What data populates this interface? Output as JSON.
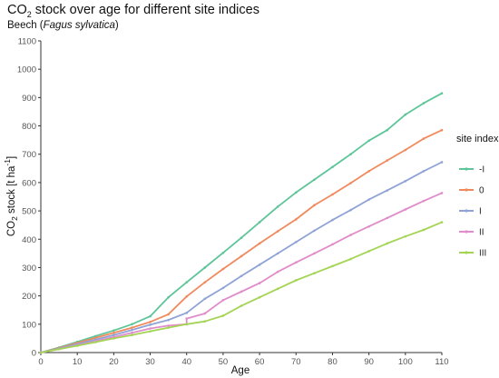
{
  "chart_data": {
    "type": "line",
    "title_prefix": "CO",
    "title_sub": "2",
    "title_suffix": " stock over age for different site indices",
    "subtitle_prefix": "Beech (",
    "subtitle_italic": "Fagus sylvatica",
    "subtitle_suffix": ")",
    "xlabel": "Age",
    "ylabel_prefix": "CO",
    "ylabel_sub": "2",
    "ylabel_mid": " stock [t ha",
    "ylabel_sup": "-1",
    "ylabel_suffix": "]",
    "xlim": [
      0,
      110
    ],
    "ylim": [
      0,
      1100
    ],
    "xticks": [
      0,
      10,
      20,
      30,
      40,
      50,
      60,
      70,
      80,
      90,
      100,
      110
    ],
    "yticks": [
      0,
      100,
      200,
      300,
      400,
      500,
      600,
      700,
      800,
      900,
      1000,
      1100
    ],
    "legend_title": "site index",
    "legend_position": "right",
    "series": [
      {
        "name": "-I",
        "color": "#5ec59a",
        "x": [
          0,
          5,
          10,
          15,
          20,
          25,
          30,
          35,
          40,
          45,
          50,
          55,
          60,
          65,
          70,
          75,
          80,
          85,
          90,
          95,
          100,
          105,
          110
        ],
        "y": [
          0,
          18,
          38,
          58,
          78,
          100,
          128,
          195,
          248,
          300,
          352,
          405,
          460,
          515,
          565,
          610,
          655,
          700,
          748,
          785,
          840,
          880,
          915
        ]
      },
      {
        "name": "0",
        "color": "#f08a5d",
        "x": [
          0,
          5,
          10,
          15,
          20,
          25,
          30,
          35,
          40,
          45,
          50,
          55,
          60,
          65,
          70,
          75,
          80,
          85,
          90,
          95,
          100,
          105,
          110
        ],
        "y": [
          0,
          16,
          34,
          52,
          70,
          88,
          108,
          135,
          198,
          248,
          295,
          340,
          385,
          428,
          470,
          520,
          558,
          598,
          640,
          678,
          715,
          755,
          785
        ]
      },
      {
        "name": "I",
        "color": "#8fa3d6",
        "x": [
          0,
          5,
          10,
          15,
          20,
          25,
          30,
          35,
          40,
          45,
          50,
          55,
          60,
          65,
          70,
          75,
          80,
          85,
          90,
          95,
          100,
          105,
          110
        ],
        "y": [
          0,
          14,
          30,
          46,
          62,
          80,
          98,
          115,
          140,
          190,
          228,
          270,
          310,
          350,
          390,
          430,
          468,
          503,
          540,
          572,
          605,
          640,
          672
        ]
      },
      {
        "name": "II",
        "color": "#e08ccb",
        "x": [
          0,
          5,
          10,
          15,
          20,
          25,
          30,
          35,
          40,
          40,
          45,
          50,
          55,
          60,
          65,
          70,
          75,
          80,
          85,
          90,
          95,
          100,
          105,
          110
        ],
        "y": [
          0,
          12,
          26,
          40,
          55,
          70,
          85,
          95,
          100,
          120,
          138,
          185,
          215,
          245,
          285,
          318,
          350,
          382,
          415,
          445,
          475,
          505,
          535,
          563
        ]
      },
      {
        "name": "III",
        "color": "#a4d454",
        "x": [
          0,
          5,
          10,
          15,
          20,
          25,
          30,
          35,
          40,
          45,
          50,
          55,
          60,
          65,
          70,
          75,
          80,
          85,
          90,
          95,
          100,
          105,
          110
        ],
        "y": [
          0,
          12,
          24,
          37,
          50,
          62,
          75,
          88,
          100,
          110,
          130,
          165,
          195,
          225,
          255,
          280,
          305,
          330,
          358,
          385,
          410,
          433,
          460
        ]
      }
    ]
  }
}
